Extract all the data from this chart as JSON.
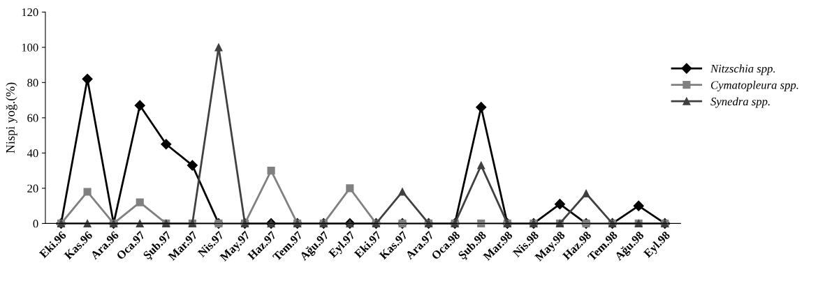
{
  "chart_data": {
    "type": "line",
    "ylabel": "Nispi yoğ.(%)",
    "categories": [
      "Eki.96",
      "Kas.96",
      "Ara.96",
      "Oca.97",
      "Şub.97",
      "Mar.97",
      "Nis.97",
      "May.97",
      "Haz.97",
      "Tem.97",
      "Ağu.97",
      "Eyl.97",
      "Eki.97",
      "Kas.97",
      "Ara.97",
      "Oca.98",
      "Şub.98",
      "Mar.98",
      "Nis.98",
      "May.98",
      "Haz.98",
      "Tem.98",
      "Ağu.98",
      "Eyl.98"
    ],
    "series": [
      {
        "name": "Nitzschia spp.",
        "color": "#000000",
        "marker": "diamond",
        "values": [
          0,
          82,
          0,
          67,
          45,
          33,
          0,
          0,
          0,
          0,
          0,
          0,
          0,
          0,
          0,
          0,
          66,
          0,
          0,
          11,
          0,
          0,
          10,
          0
        ]
      },
      {
        "name": "Cymatopleura spp.",
        "color": "#808080",
        "marker": "square",
        "values": [
          0,
          18,
          0,
          12,
          0,
          0,
          0,
          0,
          30,
          0,
          0,
          20,
          0,
          0,
          0,
          0,
          0,
          0,
          0,
          0,
          0,
          0,
          0,
          0
        ]
      },
      {
        "name": "Synedra spp.",
        "color": "#404040",
        "marker": "triangle",
        "values": [
          0,
          0,
          0,
          0,
          0,
          0,
          100,
          0,
          0,
          0,
          0,
          0,
          0,
          18,
          0,
          0,
          33,
          0,
          0,
          0,
          17,
          0,
          0,
          0
        ]
      }
    ],
    "ylim": [
      0,
      120
    ],
    "yticks": [
      0,
      20,
      40,
      60,
      80,
      100,
      120
    ],
    "grid": false,
    "legend": "right",
    "line_style": "solid"
  }
}
